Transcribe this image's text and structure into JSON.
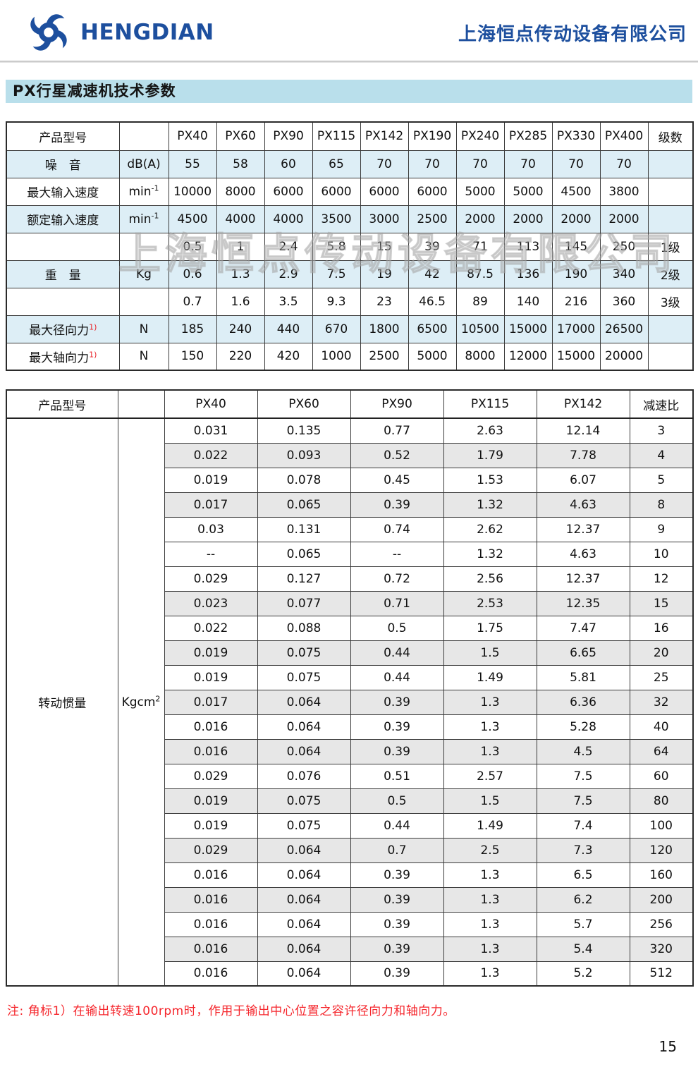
{
  "header": {
    "logo_text": "HENGDIAN",
    "company_name": "上海恒点传动设备有限公司"
  },
  "page_title": "PX行星减速机技术参数",
  "watermark": "上海恒点传动设备有限公司",
  "table1": {
    "header": [
      "产品型号",
      "",
      "PX40",
      "PX60",
      "PX90",
      "PX115",
      "PX142",
      "PX190",
      "PX240",
      "PX285",
      "PX330",
      "PX400",
      "级数"
    ],
    "rows": [
      {
        "label": "噪　音",
        "label_sup": "",
        "unit": "dB(A)",
        "unit_sup": "",
        "values": [
          "55",
          "58",
          "60",
          "65",
          "70",
          "70",
          "70",
          "70",
          "70",
          "70"
        ],
        "stage": "",
        "shaded": true
      },
      {
        "label": "最大输入速度",
        "label_sup": "",
        "unit": "min",
        "unit_sup": "-1",
        "values": [
          "10000",
          "8000",
          "6000",
          "6000",
          "6000",
          "6000",
          "5000",
          "5000",
          "4500",
          "3800"
        ],
        "stage": "",
        "shaded": false
      },
      {
        "label": "额定输入速度",
        "label_sup": "",
        "unit": "min",
        "unit_sup": "-1",
        "values": [
          "4500",
          "4000",
          "4000",
          "3500",
          "3000",
          "2500",
          "2000",
          "2000",
          "2000",
          "2000"
        ],
        "stage": "",
        "shaded": true
      },
      {
        "label": "",
        "label_sup": "",
        "unit": "",
        "unit_sup": "",
        "values": [
          "0.5",
          "1",
          "2.4",
          "5.8",
          "15",
          "39",
          "71",
          "113",
          "145",
          "250"
        ],
        "stage": "1级",
        "shaded": false
      },
      {
        "label": "重　量",
        "label_sup": "",
        "unit": "Kg",
        "unit_sup": "",
        "values": [
          "0.6",
          "1.3",
          "2.9",
          "7.5",
          "19",
          "42",
          "87.5",
          "136",
          "190",
          "340"
        ],
        "stage": "2级",
        "shaded": true
      },
      {
        "label": "",
        "label_sup": "",
        "unit": "",
        "unit_sup": "",
        "values": [
          "0.7",
          "1.6",
          "3.5",
          "9.3",
          "23",
          "46.5",
          "89",
          "140",
          "216",
          "360"
        ],
        "stage": "3级",
        "shaded": false
      },
      {
        "label": "最大径向力",
        "label_sup": "1)",
        "unit": "N",
        "unit_sup": "",
        "values": [
          "185",
          "240",
          "440",
          "670",
          "1800",
          "6500",
          "10500",
          "15000",
          "17000",
          "26500"
        ],
        "stage": "",
        "shaded": true
      },
      {
        "label": "最大轴向力",
        "label_sup": "1)",
        "unit": "N",
        "unit_sup": "",
        "values": [
          "150",
          "220",
          "420",
          "1000",
          "2500",
          "5000",
          "8000",
          "12000",
          "15000",
          "20000"
        ],
        "stage": "",
        "shaded": false
      }
    ]
  },
  "table2": {
    "header": [
      "产品型号",
      "",
      "PX40",
      "PX60",
      "PX90",
      "PX115",
      "PX142",
      "减速比"
    ],
    "row_label": "转动惯量",
    "row_unit": "Kgcm",
    "row_unit_sup": "2",
    "rows": [
      {
        "values": [
          "0.031",
          "0.135",
          "0.77",
          "2.63",
          "12.14"
        ],
        "ratio": "3",
        "shaded": false
      },
      {
        "values": [
          "0.022",
          "0.093",
          "0.52",
          "1.79",
          "7.78"
        ],
        "ratio": "4",
        "shaded": true
      },
      {
        "values": [
          "0.019",
          "0.078",
          "0.45",
          "1.53",
          "6.07"
        ],
        "ratio": "5",
        "shaded": false
      },
      {
        "values": [
          "0.017",
          "0.065",
          "0.39",
          "1.32",
          "4.63"
        ],
        "ratio": "8",
        "shaded": true
      },
      {
        "values": [
          "0.03",
          "0.131",
          "0.74",
          "2.62",
          "12.37"
        ],
        "ratio": "9",
        "shaded": false
      },
      {
        "values": [
          "--",
          "0.065",
          "--",
          "1.32",
          "4.63"
        ],
        "ratio": "10",
        "shaded": false
      },
      {
        "values": [
          "0.029",
          "0.127",
          "0.72",
          "2.56",
          "12.37"
        ],
        "ratio": "12",
        "shaded": false
      },
      {
        "values": [
          "0.023",
          "0.077",
          "0.71",
          "2.53",
          "12.35"
        ],
        "ratio": "15",
        "shaded": true
      },
      {
        "values": [
          "0.022",
          "0.088",
          "0.5",
          "1.75",
          "7.47"
        ],
        "ratio": "16",
        "shaded": false
      },
      {
        "values": [
          "0.019",
          "0.075",
          "0.44",
          "1.5",
          "6.65"
        ],
        "ratio": "20",
        "shaded": true
      },
      {
        "values": [
          "0.019",
          "0.075",
          "0.44",
          "1.49",
          "5.81"
        ],
        "ratio": "25",
        "shaded": false
      },
      {
        "values": [
          "0.017",
          "0.064",
          "0.39",
          "1.3",
          "6.36"
        ],
        "ratio": "32",
        "shaded": true
      },
      {
        "values": [
          "0.016",
          "0.064",
          "0.39",
          "1.3",
          "5.28"
        ],
        "ratio": "40",
        "shaded": false
      },
      {
        "values": [
          "0.016",
          "0.064",
          "0.39",
          "1.3",
          "4.5"
        ],
        "ratio": "64",
        "shaded": true
      },
      {
        "values": [
          "0.029",
          "0.076",
          "0.51",
          "2.57",
          "7.5"
        ],
        "ratio": "60",
        "shaded": false
      },
      {
        "values": [
          "0.019",
          "0.075",
          "0.5",
          "1.5",
          "7.5"
        ],
        "ratio": "80",
        "shaded": true
      },
      {
        "values": [
          "0.019",
          "0.075",
          "0.44",
          "1.49",
          "7.4"
        ],
        "ratio": "100",
        "shaded": false
      },
      {
        "values": [
          "0.029",
          "0.064",
          "0.7",
          "2.5",
          "7.3"
        ],
        "ratio": "120",
        "shaded": true
      },
      {
        "values": [
          "0.016",
          "0.064",
          "0.39",
          "1.3",
          "6.5"
        ],
        "ratio": "160",
        "shaded": false
      },
      {
        "values": [
          "0.016",
          "0.064",
          "0.39",
          "1.3",
          "6.2"
        ],
        "ratio": "200",
        "shaded": true
      },
      {
        "values": [
          "0.016",
          "0.064",
          "0.39",
          "1.3",
          "5.7"
        ],
        "ratio": "256",
        "shaded": false
      },
      {
        "values": [
          "0.016",
          "0.064",
          "0.39",
          "1.3",
          "5.4"
        ],
        "ratio": "320",
        "shaded": true
      },
      {
        "values": [
          "0.016",
          "0.064",
          "0.39",
          "1.3",
          "5.2"
        ],
        "ratio": "512",
        "shaded": false
      }
    ]
  },
  "footer": {
    "note": "注: 角标1）在输出转速100rpm时，作用于输出中心位置之容许径向力和轴向力。",
    "page_number": "15"
  }
}
